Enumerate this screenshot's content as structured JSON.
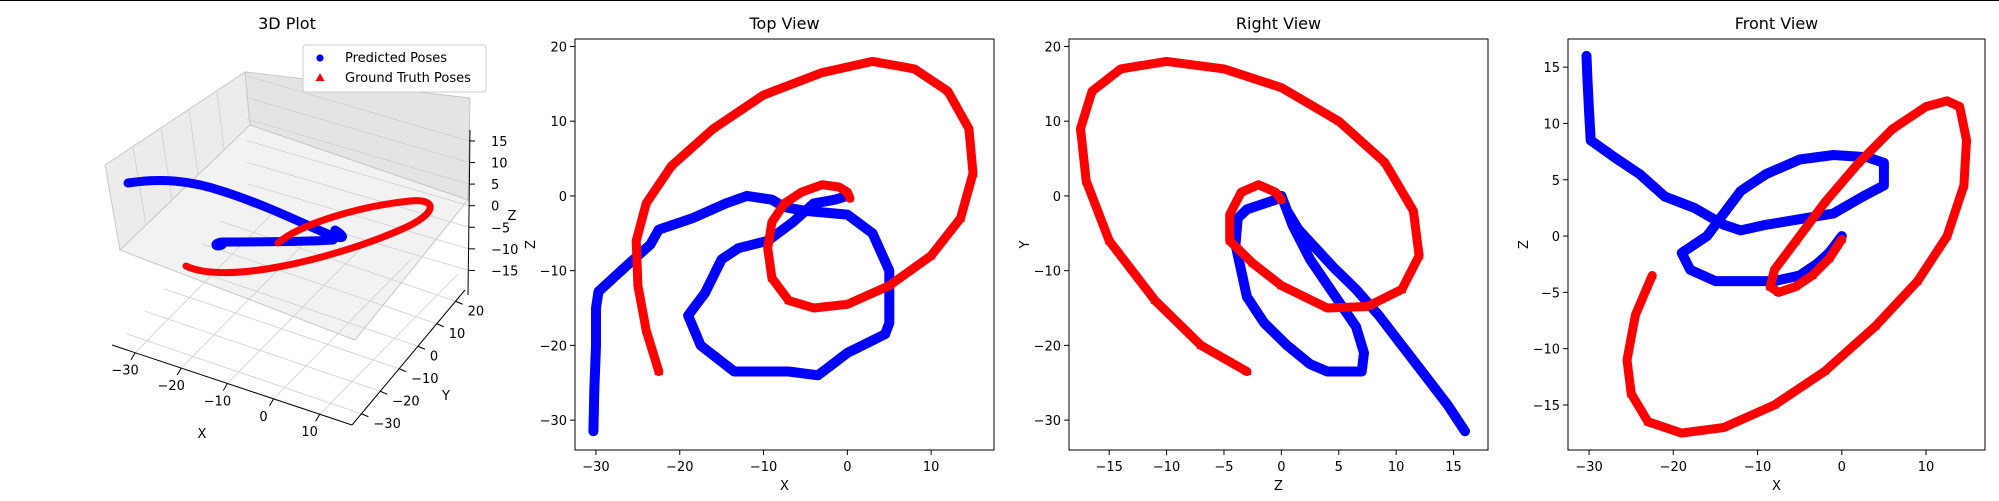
{
  "chart_data": [
    {
      "type": "scatter3d",
      "title": "3D Plot",
      "xlabel": "X",
      "ylabel": "Y",
      "zlabel": "Z",
      "xticks": [
        -30,
        -20,
        -10,
        0,
        10
      ],
      "yticks": [
        -30,
        -20,
        -10,
        0,
        10,
        20
      ],
      "zticks": [
        -15,
        -10,
        -5,
        0,
        5,
        10,
        15
      ],
      "legend": {
        "position": "top-right",
        "entries": [
          {
            "label": "Predicted Poses",
            "marker": "circle",
            "color": "#0000ff"
          },
          {
            "label": "Ground Truth Poses",
            "marker": "triangle",
            "color": "#ff0000"
          }
        ]
      }
    },
    {
      "type": "scatter",
      "title": "Top View",
      "xlabel": "X",
      "ylabel": "Z",
      "xlim": [
        -32.5,
        17.5
      ],
      "ylim": [
        -34,
        21
      ],
      "xticks": [
        -30,
        -20,
        -10,
        0,
        10
      ],
      "yticks": [
        -30,
        -20,
        -10,
        0,
        10,
        20
      ],
      "series": [
        {
          "name": "Predicted Poses",
          "color": "#0000ff",
          "x": [
            -30.3,
            -30.2,
            -30.0,
            -30.0,
            -29.7,
            -26.5,
            -23.5,
            -22.5,
            -18.5,
            -14.5,
            -12.0,
            -9.0,
            -7.5,
            -5.0,
            0.0,
            3.0,
            5.0,
            5.0,
            4.5,
            0.0,
            -3.5,
            -7.0,
            -10.0,
            -13.5,
            -17.5,
            -19.0,
            -17.0,
            -15.0,
            -13.0,
            -9.5,
            -6.5,
            -4.0,
            -1.5,
            0.0
          ],
          "y": [
            -31.5,
            -26.0,
            -20.0,
            -15.0,
            -12.8,
            -9.5,
            -6.5,
            -4.5,
            -3.0,
            -1.0,
            0.0,
            -0.5,
            -1.5,
            -2.0,
            -2.5,
            -5.0,
            -10.0,
            -17.0,
            -18.5,
            -21.0,
            -24.0,
            -23.5,
            -23.5,
            -23.5,
            -20.0,
            -16.0,
            -13.0,
            -8.5,
            -7.0,
            -6.0,
            -3.5,
            -1.0,
            -0.5,
            0.0
          ]
        },
        {
          "name": "Ground Truth Poses",
          "color": "#ff0000",
          "x": [
            -22.5,
            -24.0,
            -25.0,
            -25.2,
            -24.0,
            -21.0,
            -16.0,
            -10.0,
            -3.0,
            3.0,
            8.0,
            12.0,
            14.5,
            15.0,
            13.5,
            10.0,
            5.0,
            0.0,
            -4.0,
            -7.0,
            -9.0,
            -9.5,
            -9.0,
            -7.5,
            -5.5,
            -3.0,
            -1.0,
            0.0,
            0.3
          ],
          "y": [
            -23.5,
            -18.0,
            -12.0,
            -6.0,
            -1.0,
            4.0,
            9.0,
            13.5,
            16.5,
            18.0,
            17.0,
            14.0,
            9.0,
            3.0,
            -3.0,
            -8.0,
            -12.0,
            -14.5,
            -15.0,
            -14.0,
            -11.0,
            -7.0,
            -3.5,
            -1.0,
            0.5,
            1.5,
            1.2,
            0.5,
            -0.3
          ]
        }
      ]
    },
    {
      "type": "scatter",
      "title": "Right View",
      "xlabel": "Z",
      "ylabel": "Y",
      "xlim": [
        -18.5,
        18.0
      ],
      "ylim": [
        -34,
        21
      ],
      "xticks": [
        -15,
        -10,
        -5,
        0,
        5,
        10,
        15
      ],
      "yticks": [
        -30,
        -20,
        -10,
        0,
        10,
        20
      ],
      "series": [
        {
          "name": "Predicted Poses",
          "color": "#0000ff",
          "x": [
            16.0,
            14.5,
            12.5,
            10.5,
            8.5,
            6.5,
            4.5,
            3.0,
            1.5,
            0.5,
            0.0,
            -0.5,
            -3.0,
            -3.8,
            -4.0,
            -3.5,
            -3.0,
            -1.5,
            0.5,
            2.5,
            4.0,
            5.5,
            7.0,
            7.2,
            6.5,
            4.5,
            2.5,
            1.0,
            0.0
          ],
          "y": [
            -31.5,
            -28.0,
            -24.0,
            -20.0,
            -16.0,
            -12.5,
            -9.5,
            -7.0,
            -4.5,
            -2.0,
            0.0,
            -0.5,
            -1.8,
            -3.0,
            -6.5,
            -10.0,
            -13.5,
            -17.0,
            -20.0,
            -22.5,
            -23.5,
            -23.5,
            -23.5,
            -21.0,
            -17.5,
            -13.0,
            -8.5,
            -4.0,
            0.0
          ]
        },
        {
          "name": "Ground Truth Poses",
          "color": "#ff0000",
          "x": [
            -3.0,
            -7.0,
            -11.0,
            -15.0,
            -17.0,
            -17.5,
            -16.5,
            -14.0,
            -10.0,
            -5.0,
            0.0,
            5.0,
            9.0,
            11.5,
            12.0,
            10.5,
            7.5,
            4.0,
            0.0,
            -2.5,
            -4.5,
            -4.5,
            -3.5,
            -2.0,
            -0.5,
            0.0
          ],
          "y": [
            -23.5,
            -20.0,
            -14.0,
            -6.0,
            2.0,
            9.0,
            14.0,
            17.0,
            18.0,
            17.0,
            14.5,
            10.0,
            4.5,
            -2.0,
            -8.0,
            -12.5,
            -14.8,
            -15.0,
            -12.0,
            -9.0,
            -6.0,
            -2.5,
            0.5,
            1.5,
            0.5,
            -0.5
          ]
        }
      ]
    },
    {
      "type": "scatter",
      "title": "Front View",
      "xlabel": "X",
      "ylabel": "Z",
      "xlim": [
        -32.5,
        17.0
      ],
      "ylim": [
        -19,
        17.5
      ],
      "xticks": [
        -30,
        -20,
        -10,
        0,
        10
      ],
      "yticks": [
        -15,
        -10,
        -5,
        0,
        5,
        10,
        15
      ],
      "series": [
        {
          "name": "Predicted Poses",
          "color": "#0000ff",
          "x": [
            -30.3,
            -30.2,
            -30.0,
            -29.8,
            -27.0,
            -24.0,
            -21.0,
            -17.5,
            -14.0,
            -12.0,
            -9.0,
            -5.0,
            -1.0,
            2.5,
            5.0,
            5.0,
            3.0,
            -1.0,
            -5.0,
            -9.0,
            -12.0,
            -14.0,
            -16.0,
            -19.0,
            -18.0,
            -15.0,
            -12.0,
            -8.0,
            -5.0,
            -3.0,
            -1.5,
            -0.5,
            0.0
          ],
          "y": [
            16.0,
            14.0,
            11.0,
            8.5,
            7.0,
            5.5,
            3.5,
            2.5,
            1.0,
            0.5,
            1.0,
            1.5,
            2.0,
            3.5,
            4.5,
            6.5,
            7.0,
            7.2,
            6.8,
            5.5,
            4.0,
            2.0,
            0.0,
            -1.5,
            -3.0,
            -4.0,
            -4.0,
            -4.0,
            -3.5,
            -2.5,
            -1.5,
            -0.5,
            0.0
          ]
        },
        {
          "name": "Ground Truth Poses",
          "color": "#ff0000",
          "x": [
            -22.5,
            -24.5,
            -25.5,
            -25.0,
            -23.0,
            -19.0,
            -14.0,
            -8.0,
            -2.0,
            4.0,
            9.0,
            12.5,
            14.5,
            14.8,
            14.0,
            12.5,
            10.0,
            6.0,
            2.0,
            -2.0,
            -5.5,
            -8.0,
            -8.5,
            -7.5,
            -5.5,
            -3.5,
            -1.5,
            0.0
          ],
          "y": [
            -3.5,
            -7.0,
            -11.0,
            -14.0,
            -16.5,
            -17.5,
            -17.0,
            -15.0,
            -12.0,
            -8.0,
            -4.0,
            0.0,
            4.5,
            8.5,
            11.5,
            12.0,
            11.5,
            9.5,
            6.5,
            3.0,
            -0.5,
            -3.0,
            -4.5,
            -5.0,
            -4.5,
            -3.5,
            -2.0,
            -0.3
          ]
        }
      ]
    }
  ]
}
